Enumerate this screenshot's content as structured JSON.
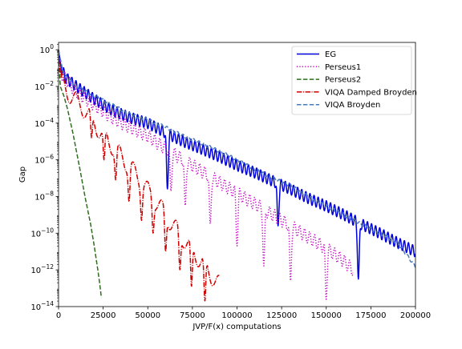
{
  "chart_data": {
    "type": "line",
    "xlabel": "JVP/F(x) computations",
    "ylabel": "Gap",
    "xlim": [
      0,
      200000
    ],
    "ylim_log10": [
      -14,
      0.4
    ],
    "yscale": "log",
    "legend_position": "upper right",
    "grid": false,
    "x_ticks": [
      "0",
      "25000",
      "50000",
      "75000",
      "100000",
      "125000",
      "150000",
      "175000",
      "200000"
    ],
    "y_ticks": [
      {
        "base": "10",
        "exp": "0"
      },
      {
        "base": "10",
        "exp": "−2"
      },
      {
        "base": "10",
        "exp": "−4"
      },
      {
        "base": "10",
        "exp": "−6"
      },
      {
        "base": "10",
        "exp": "−8"
      },
      {
        "base": "10",
        "exp": "−10"
      },
      {
        "base": "10",
        "exp": "−12"
      },
      {
        "base": "10",
        "exp": "−14"
      }
    ],
    "series": [
      {
        "name": "EG",
        "color": "#0000dd",
        "style": "solid",
        "points": [
          [
            0,
            1.0
          ],
          [
            1500,
            0.1
          ],
          [
            4000,
            0.03
          ],
          [
            10000,
            0.01
          ],
          [
            20000,
            0.002
          ],
          [
            30000,
            0.0005
          ],
          [
            40000,
            0.0002
          ],
          [
            50000,
            0.0001
          ],
          [
            60000,
            3e-05
          ],
          [
            70000,
            1e-05
          ],
          [
            80000,
            4e-06
          ],
          [
            90000,
            1.5e-06
          ],
          [
            100000,
            5e-07
          ],
          [
            110000,
            2e-07
          ],
          [
            120000,
            7e-08
          ],
          [
            130000,
            2.5e-08
          ],
          [
            140000,
            8e-09
          ],
          [
            150000,
            3e-09
          ],
          [
            160000,
            1e-09
          ],
          [
            170000,
            3e-10
          ],
          [
            180000,
            1e-10
          ],
          [
            190000,
            3e-11
          ],
          [
            200000,
            1e-11
          ]
        ],
        "osc_amp_log10": 0.3,
        "osc_period": 2300,
        "dips": [
          [
            61000,
            -7.6
          ],
          [
            123000,
            -9.6
          ],
          [
            168000,
            -12.5
          ]
        ]
      },
      {
        "name": "Perseus1",
        "color": "#c000c0",
        "style": "dotted",
        "points": [
          [
            0,
            0.5
          ],
          [
            1500,
            0.05
          ],
          [
            5000,
            0.02
          ],
          [
            10000,
            0.005
          ],
          [
            20000,
            0.001
          ],
          [
            30000,
            0.0002
          ],
          [
            40000,
            6e-05
          ],
          [
            50000,
            2e-05
          ],
          [
            60000,
            4e-06
          ],
          [
            70000,
            1e-06
          ],
          [
            80000,
            2.5e-07
          ],
          [
            90000,
            6e-08
          ],
          [
            100000,
            1.5e-08
          ],
          [
            110000,
            4e-09
          ],
          [
            120000,
            1e-09
          ],
          [
            130000,
            2.5e-10
          ],
          [
            140000,
            6e-11
          ],
          [
            150000,
            1.5e-11
          ],
          [
            160000,
            3e-12
          ],
          [
            165000,
            1e-12
          ]
        ],
        "osc_amp_log10": 0.35,
        "osc_period": 2800,
        "dips": [
          [
            63000,
            -7.7
          ],
          [
            71000,
            -8.5
          ],
          [
            85000,
            -9.5
          ],
          [
            100000,
            -10.7
          ],
          [
            115000,
            -11.8
          ],
          [
            130000,
            -12.6
          ],
          [
            150000,
            -13.6
          ]
        ]
      },
      {
        "name": "Perseus2",
        "color": "#2e6e1e",
        "style": "dashed",
        "points": [
          [
            0,
            0.5
          ],
          [
            1000,
            0.01
          ],
          [
            3000,
            0.003
          ],
          [
            5000,
            0.0006
          ],
          [
            8000,
            3e-05
          ],
          [
            10000,
            3e-06
          ],
          [
            12000,
            3e-07
          ],
          [
            15000,
            8e-09
          ],
          [
            18000,
            3e-10
          ],
          [
            20000,
            2e-11
          ],
          [
            22000,
            1e-12
          ],
          [
            23000,
            2e-13
          ],
          [
            24000,
            3e-14
          ]
        ],
        "osc_amp_log10": 0,
        "osc_period": 1,
        "dips": []
      },
      {
        "name": "VIQA Damped Broyden",
        "color": "#d00000",
        "style": "dashdot",
        "points": [
          [
            0,
            0.3
          ],
          [
            2000,
            0.015
          ],
          [
            5000,
            0.005
          ],
          [
            10000,
            0.0015
          ],
          [
            15000,
            0.0005
          ],
          [
            20000,
            0.0001
          ],
          [
            25000,
            2e-05
          ],
          [
            30000,
            6e-06
          ],
          [
            35000,
            1.5e-06
          ],
          [
            40000,
            4e-07
          ],
          [
            45000,
            1e-07
          ],
          [
            50000,
            2e-08
          ],
          [
            55000,
            5e-09
          ],
          [
            60000,
            1e-09
          ],
          [
            65000,
            2e-10
          ],
          [
            70000,
            5e-11
          ],
          [
            75000,
            1e-11
          ],
          [
            80000,
            3e-12
          ],
          [
            85000,
            6e-13
          ],
          [
            90000,
            1.5e-13
          ]
        ],
        "osc_amp_log10": 0.5,
        "osc_period": 8000,
        "dips": [
          [
            18500,
            -4.8
          ],
          [
            25500,
            -6.0
          ],
          [
            32000,
            -7.1
          ],
          [
            39500,
            -8.3
          ],
          [
            46500,
            -9.3
          ],
          [
            53000,
            -10.0
          ],
          [
            60000,
            -11.0
          ],
          [
            68000,
            -12.0
          ],
          [
            74500,
            -12.9
          ],
          [
            82000,
            -13.7
          ]
        ]
      },
      {
        "name": "VIQA Broyden",
        "color": "#4a7ab8",
        "style": "dashed",
        "points": [
          [
            0,
            0.8
          ],
          [
            1500,
            0.2
          ],
          [
            3000,
            0.05
          ],
          [
            10000,
            0.01
          ],
          [
            20000,
            0.003
          ],
          [
            30000,
            0.001
          ],
          [
            40000,
            0.0003
          ],
          [
            50000,
            0.00015
          ],
          [
            60000,
            6e-05
          ],
          [
            70000,
            2e-05
          ],
          [
            80000,
            8e-06
          ],
          [
            90000,
            3e-06
          ],
          [
            100000,
            1e-06
          ],
          [
            110000,
            3e-07
          ],
          [
            120000,
            1e-07
          ],
          [
            130000,
            4e-08
          ],
          [
            140000,
            1e-08
          ],
          [
            150000,
            3e-09
          ],
          [
            160000,
            1e-09
          ],
          [
            170000,
            3e-10
          ],
          [
            180000,
            1e-10
          ],
          [
            190000,
            3e-11
          ],
          [
            200000,
            1.5e-12
          ]
        ],
        "osc_amp_log10": 0.08,
        "osc_period": 3000,
        "dips": []
      }
    ]
  }
}
